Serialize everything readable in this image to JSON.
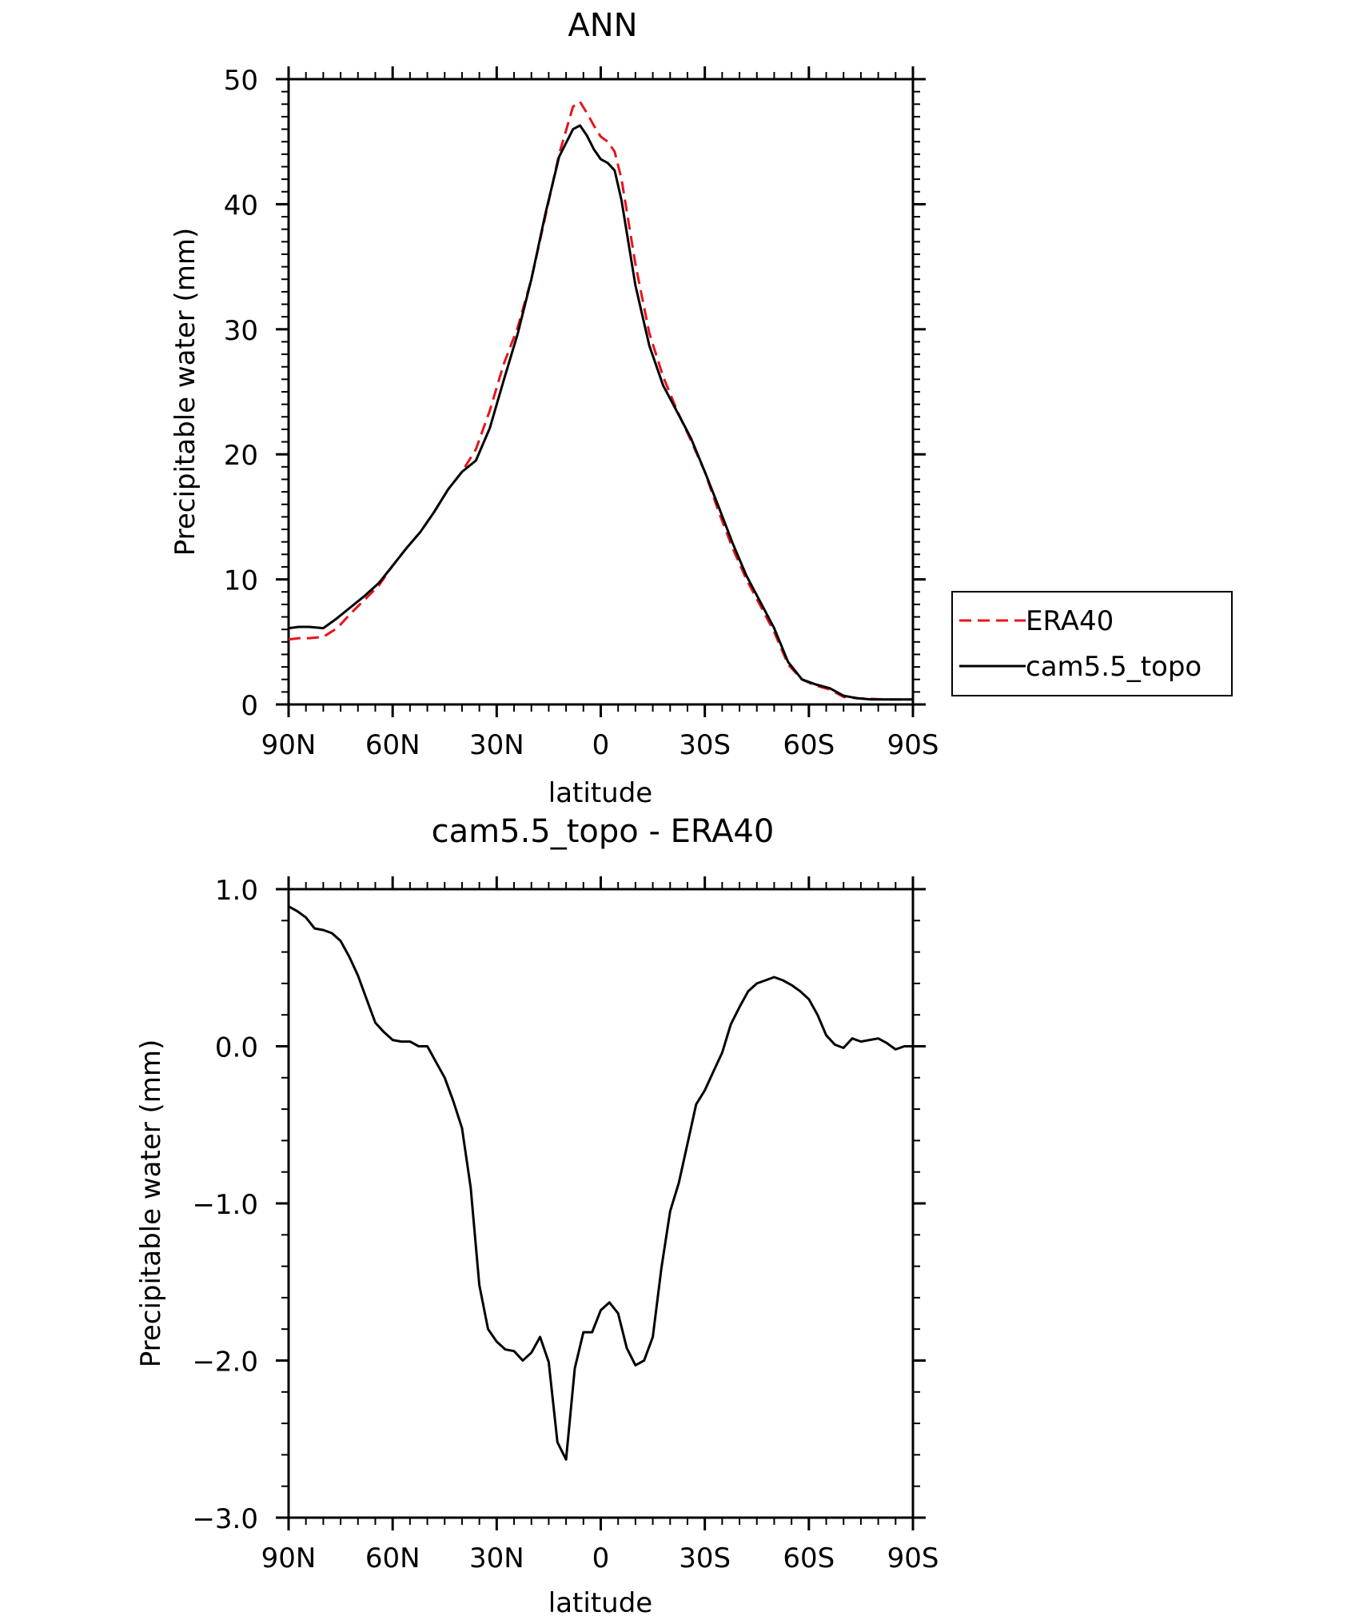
{
  "chart_data": [
    {
      "type": "line",
      "title": "ANN",
      "xlabel": "latitude",
      "ylabel": "Precipitable water (mm)",
      "xlim": [
        90,
        -90
      ],
      "ylim": [
        0,
        50
      ],
      "x_ticks": [
        90,
        60,
        30,
        0,
        -30,
        -60,
        -90
      ],
      "x_tick_labels": [
        "90N",
        "60N",
        "30N",
        "0",
        "30S",
        "60S",
        "90S"
      ],
      "y_ticks": [
        0,
        10,
        20,
        30,
        40,
        50
      ],
      "y_tick_labels": [
        "0",
        "10",
        "20",
        "30",
        "40",
        "50"
      ],
      "grid": false,
      "legend": {
        "placement": "right",
        "entries": [
          "ERA40",
          "cam5.5_topo"
        ]
      },
      "series": [
        {
          "name": "ERA40",
          "color": "#e8141b",
          "style": "dashed",
          "x": [
            90,
            87,
            84,
            80,
            76,
            72,
            68,
            64,
            60,
            56,
            52,
            48,
            44,
            40,
            36,
            32,
            28,
            24,
            20,
            16,
            12,
            8,
            6,
            4,
            2,
            0,
            -2,
            -4,
            -6,
            -10,
            -14,
            -18,
            -22,
            -26,
            -30,
            -34,
            -38,
            -42,
            -46,
            -50,
            -54,
            -58,
            -62,
            -66,
            -70,
            -74,
            -78,
            -82,
            -86,
            -90
          ],
          "values": [
            5.2,
            5.3,
            5.3,
            5.4,
            6.1,
            7.3,
            8.4,
            9.5,
            11.1,
            12.5,
            13.8,
            15.4,
            17.2,
            18.6,
            20.4,
            23.5,
            27.2,
            30.1,
            34.0,
            39.0,
            44.0,
            47.8,
            48.2,
            47.3,
            46.3,
            45.4,
            45.0,
            44.2,
            42.0,
            35.2,
            29.7,
            26.2,
            23.5,
            21.1,
            18.6,
            15.4,
            12.5,
            10.0,
            7.9,
            5.8,
            3.2,
            2.0,
            1.5,
            1.2,
            0.6,
            0.5,
            0.45,
            0.4,
            0.4,
            0.4
          ]
        },
        {
          "name": "cam5.5_topo",
          "color": "#000000",
          "style": "solid",
          "x": [
            90,
            87,
            84,
            80,
            76,
            72,
            68,
            64,
            60,
            56,
            52,
            48,
            44,
            40,
            36,
            32,
            28,
            24,
            20,
            16,
            12,
            8,
            6,
            4,
            2,
            0,
            -2,
            -4,
            -6,
            -10,
            -14,
            -18,
            -22,
            -26,
            -30,
            -34,
            -38,
            -42,
            -46,
            -50,
            -54,
            -58,
            -62,
            -66,
            -70,
            -74,
            -78,
            -82,
            -86,
            -90
          ],
          "values": [
            6.1,
            6.2,
            6.2,
            6.1,
            6.9,
            7.8,
            8.7,
            9.7,
            11.1,
            12.5,
            13.8,
            15.4,
            17.2,
            18.6,
            19.5,
            22.1,
            25.9,
            29.6,
            34.0,
            39.2,
            43.8,
            46.0,
            46.3,
            45.5,
            44.4,
            43.6,
            43.3,
            42.7,
            40.3,
            33.5,
            28.7,
            25.5,
            23.4,
            21.3,
            18.6,
            15.8,
            12.9,
            10.3,
            8.2,
            6.1,
            3.4,
            2.0,
            1.6,
            1.3,
            0.7,
            0.5,
            0.4,
            0.4,
            0.4,
            0.4
          ]
        }
      ]
    },
    {
      "type": "line",
      "title": "cam5.5_topo - ERA40",
      "xlabel": "latitude",
      "ylabel": "Precipitable water (mm)",
      "xlim": [
        90,
        -90
      ],
      "ylim": [
        -3.0,
        1.0
      ],
      "x_ticks": [
        90,
        60,
        30,
        0,
        -30,
        -60,
        -90
      ],
      "x_tick_labels": [
        "90N",
        "60N",
        "30N",
        "0",
        "30S",
        "60S",
        "90S"
      ],
      "y_ticks": [
        1.0,
        0.0,
        -1.0,
        -2.0,
        -3.0
      ],
      "y_tick_labels": [
        "1.0",
        "0.0",
        "−1.0",
        "−2.0",
        "−3.0"
      ],
      "grid": false,
      "series": [
        {
          "color": "#000000",
          "style": "solid",
          "x": [
            90,
            87.5,
            85,
            82.5,
            80,
            77.5,
            75,
            72.5,
            70,
            67.5,
            65,
            62.5,
            60,
            57.5,
            55,
            52.5,
            50,
            47.5,
            45,
            42.5,
            40,
            37.5,
            35,
            32.5,
            30,
            27.5,
            25,
            22.5,
            20,
            17.5,
            15,
            12.5,
            10,
            7.5,
            5,
            2.5,
            0,
            -2.5,
            -5,
            -7.5,
            -10,
            -12.5,
            -15,
            -17.5,
            -20,
            -22.5,
            -25,
            -27.5,
            -30,
            -32.5,
            -35,
            -37.5,
            -40,
            -42.5,
            -45,
            -47.5,
            -50,
            -52.5,
            -55,
            -57.5,
            -60,
            -62.5,
            -65,
            -67.5,
            -70,
            -72.5,
            -75,
            -77.5,
            -80,
            -82.5,
            -85,
            -87.5,
            -90
          ],
          "values": [
            0.89,
            0.86,
            0.82,
            0.75,
            0.74,
            0.72,
            0.67,
            0.57,
            0.45,
            0.3,
            0.15,
            0.09,
            0.04,
            0.03,
            0.03,
            0.0,
            0.0,
            -0.1,
            -0.2,
            -0.35,
            -0.52,
            -0.9,
            -1.52,
            -1.8,
            -1.88,
            -1.93,
            -1.94,
            -2.0,
            -1.95,
            -1.85,
            -2.01,
            -2.52,
            -2.63,
            -2.05,
            -1.82,
            -1.82,
            -1.68,
            -1.63,
            -1.7,
            -1.92,
            -2.03,
            -2.0,
            -1.85,
            -1.41,
            -1.05,
            -0.87,
            -0.62,
            -0.37,
            -0.28,
            -0.16,
            -0.04,
            0.14,
            0.25,
            0.35,
            0.4,
            0.42,
            0.44,
            0.42,
            0.39,
            0.35,
            0.3,
            0.2,
            0.07,
            0.01,
            -0.01,
            0.05,
            0.03,
            0.04,
            0.05,
            0.02,
            -0.02,
            0.0,
            0.0
          ]
        }
      ]
    }
  ]
}
